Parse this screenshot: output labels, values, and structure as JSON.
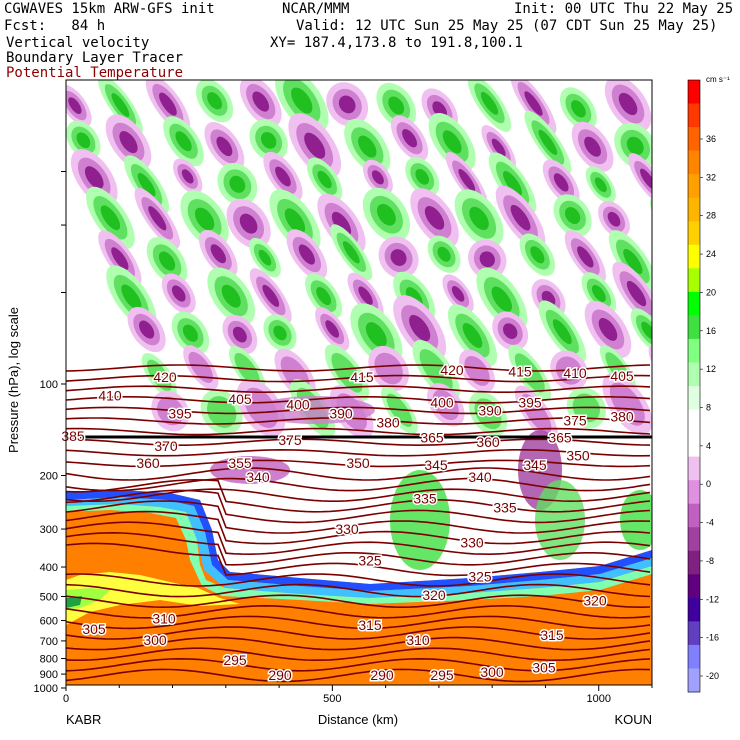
{
  "header": {
    "model": "CGWAVES 15km ARW-GFS init",
    "forecast": "Fcst:   84 h",
    "org": "NCAR/MMM",
    "init": "Init: 00 UTC Thu 22 May 25",
    "valid": "Valid: 12 UTC Sun 25 May 25 (07 CDT Sun 25 May 25)",
    "xy": "XY= 187.4,173.8 to 191.8,100.1",
    "field1": "Vertical velocity",
    "field2": "Boundary Layer Tracer",
    "field3": "Potential Temperature"
  },
  "colors": {
    "theta": "#7a0000",
    "title3": "#8b0000"
  },
  "chart_data": {
    "type": "cross-section",
    "xlabel": "Distance (km)",
    "ylabel": "Pressure (hPa), log scale",
    "x_ticks": [
      0,
      500,
      1000
    ],
    "xlim": [
      0,
      1100
    ],
    "y_ticks": [
      100,
      200,
      300,
      400,
      500,
      600,
      700,
      800,
      900,
      1000
    ],
    "y_scale": "log",
    "endpoints": {
      "left": "KABR",
      "right": "KOUN"
    },
    "colorbar": {
      "units": "cm s⁻¹",
      "labels": [
        36,
        32,
        28,
        24,
        20,
        16,
        12,
        8,
        4,
        0,
        -4,
        -8,
        -12,
        -16,
        -20
      ],
      "colors": [
        "#ff0000",
        "#ff3800",
        "#ff6400",
        "#ff8400",
        "#ffa000",
        "#ffb400",
        "#ffd000",
        "#ffff00",
        "#a8ff00",
        "#00ff00",
        "#40e040",
        "#80ff80",
        "#b0ffb0",
        "#e0ffe0",
        "#ffffff",
        "#ffffff",
        "#f0c0f0",
        "#e090e0",
        "#c060c0",
        "#a040a0",
        "#802080",
        "#600080",
        "#4000a0",
        "#6040c0",
        "#8080ff",
        "#a0a0ff"
      ]
    },
    "theta_labels": [
      {
        "v": "420",
        "x": 165,
        "p": 95
      },
      {
        "v": "415",
        "x": 362,
        "p": 95
      },
      {
        "v": "420",
        "x": 452,
        "p": 90
      },
      {
        "v": "415",
        "x": 520,
        "p": 91
      },
      {
        "v": "410",
        "x": 575,
        "p": 92
      },
      {
        "v": "405",
        "x": 622,
        "p": 94
      },
      {
        "v": "410",
        "x": 110,
        "p": 109
      },
      {
        "v": "405",
        "x": 240,
        "p": 112
      },
      {
        "v": "400",
        "x": 298,
        "p": 117
      },
      {
        "v": "400",
        "x": 442,
        "p": 115
      },
      {
        "v": "395",
        "x": 530,
        "p": 115
      },
      {
        "v": "390",
        "x": 490,
        "p": 122
      },
      {
        "v": "395",
        "x": 180,
        "p": 125
      },
      {
        "v": "390",
        "x": 341,
        "p": 125
      },
      {
        "v": "380",
        "x": 388,
        "p": 134
      },
      {
        "v": "375",
        "x": 575,
        "p": 132
      },
      {
        "v": "380",
        "x": 622,
        "p": 128
      },
      {
        "v": "385",
        "x": 73,
        "p": 148
      },
      {
        "v": "375",
        "x": 290,
        "p": 153
      },
      {
        "v": "365",
        "x": 432,
        "p": 150
      },
      {
        "v": "360",
        "x": 488,
        "p": 155
      },
      {
        "v": "365",
        "x": 560,
        "p": 150
      },
      {
        "v": "370",
        "x": 166,
        "p": 160
      },
      {
        "v": "350",
        "x": 578,
        "p": 172
      },
      {
        "v": "360",
        "x": 148,
        "p": 182
      },
      {
        "v": "355",
        "x": 240,
        "p": 182
      },
      {
        "v": "350",
        "x": 358,
        "p": 182
      },
      {
        "v": "345",
        "x": 436,
        "p": 185
      },
      {
        "v": "345",
        "x": 535,
        "p": 185
      },
      {
        "v": "340",
        "x": 258,
        "p": 202
      },
      {
        "v": "340",
        "x": 480,
        "p": 202
      },
      {
        "v": "335",
        "x": 425,
        "p": 238
      },
      {
        "v": "335",
        "x": 505,
        "p": 255
      },
      {
        "v": "330",
        "x": 347,
        "p": 300
      },
      {
        "v": "330",
        "x": 472,
        "p": 332
      },
      {
        "v": "325",
        "x": 370,
        "p": 380
      },
      {
        "v": "325",
        "x": 480,
        "p": 430
      },
      {
        "v": "320",
        "x": 434,
        "p": 495
      },
      {
        "v": "320",
        "x": 595,
        "p": 515
      },
      {
        "v": "310",
        "x": 164,
        "p": 590
      },
      {
        "v": "305",
        "x": 94,
        "p": 640
      },
      {
        "v": "300",
        "x": 155,
        "p": 695
      },
      {
        "v": "315",
        "x": 370,
        "p": 620
      },
      {
        "v": "310",
        "x": 418,
        "p": 695
      },
      {
        "v": "315",
        "x": 552,
        "p": 670
      },
      {
        "v": "295",
        "x": 235,
        "p": 810
      },
      {
        "v": "290",
        "x": 280,
        "p": 905
      },
      {
        "v": "290",
        "x": 382,
        "p": 905
      },
      {
        "v": "295",
        "x": 442,
        "p": 905
      },
      {
        "v": "300",
        "x": 492,
        "p": 885
      },
      {
        "v": "305",
        "x": 544,
        "p": 855
      }
    ]
  }
}
